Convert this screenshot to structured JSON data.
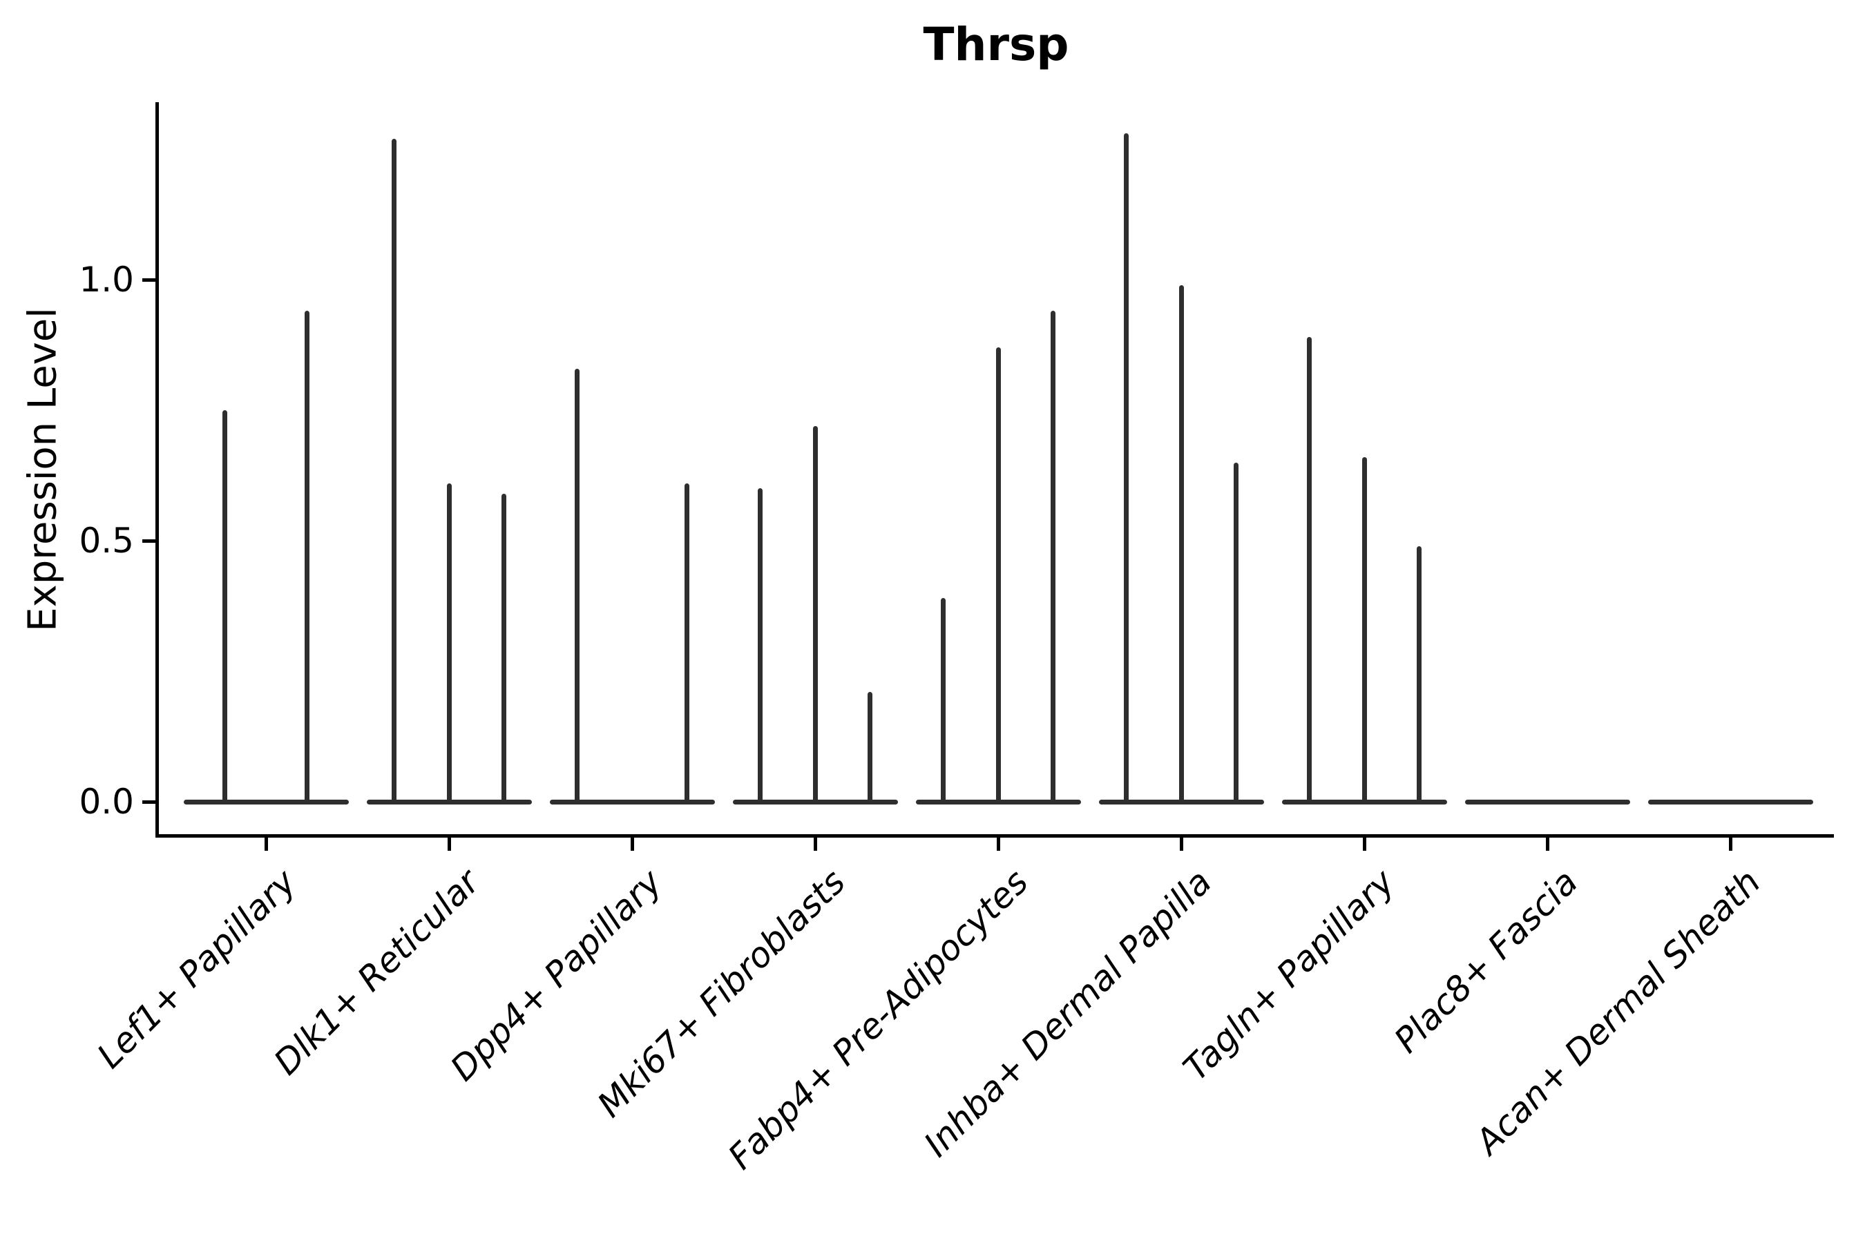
{
  "chart_data": {
    "type": "violin",
    "title": "Thrsp",
    "xlabel": "",
    "ylabel": "Expression Level",
    "ylim": [
      -0.065,
      1.34
    ],
    "yticks": [
      0.0,
      0.5,
      1.0
    ],
    "ytick_labels": [
      "0.0",
      "0.5",
      "1.0"
    ],
    "grid": false,
    "legend": "none",
    "categories": [
      "Lef1+ Papillary",
      "Dlk1+ Reticular",
      "Dpp4+ Papillary",
      "Mki67+ Fibroblasts",
      "Fabp4+ Pre-Adipocytes",
      "Inhba+ Dermal Papilla",
      "Tagln+ Papillary",
      "Plac8+ Fascia",
      "Acan+ Dermal Sheath"
    ],
    "violins": [
      {
        "category": "Lef1+ Papillary",
        "offsets": [
          -0.225,
          0.225
        ],
        "max_values": [
          0.75,
          0.94
        ]
      },
      {
        "category": "Dlk1+ Reticular",
        "offsets": [
          -0.3,
          0.0,
          0.3
        ],
        "max_values": [
          1.27,
          0.61,
          0.59
        ]
      },
      {
        "category": "Dpp4+ Papillary",
        "offsets": [
          -0.3,
          0.0,
          0.3
        ],
        "max_values": [
          0.83,
          0.0,
          0.61
        ]
      },
      {
        "category": "Mki67+ Fibroblasts",
        "offsets": [
          -0.3,
          0.0,
          0.3
        ],
        "max_values": [
          0.6,
          0.72,
          0.21
        ]
      },
      {
        "category": "Fabp4+ Pre-Adipocytes",
        "offsets": [
          -0.3,
          0.0,
          0.3
        ],
        "max_values": [
          0.39,
          0.87,
          0.94
        ]
      },
      {
        "category": "Inhba+ Dermal Papilla",
        "offsets": [
          -0.3,
          0.0,
          0.3
        ],
        "max_values": [
          1.28,
          0.99,
          0.65
        ]
      },
      {
        "category": "Tagln+ Papillary",
        "offsets": [
          -0.3,
          0.0,
          0.3
        ],
        "max_values": [
          0.89,
          0.66,
          0.49
        ]
      },
      {
        "category": "Plac8+ Fascia",
        "offsets": [
          -0.3,
          0.0,
          0.3
        ],
        "max_values": [
          0.0,
          0.0,
          0.0
        ]
      },
      {
        "category": "Acan+ Dermal Sheath",
        "offsets": [
          -0.3,
          0.0,
          0.3
        ],
        "max_values": [
          0.0,
          0.0,
          0.0
        ]
      }
    ],
    "violin_body_width_units": 0.9,
    "style": {
      "spike_color": "#2e2e2e",
      "baseline_color": "#2e2e2e",
      "axis_color": "#000000",
      "background": "#ffffff"
    }
  }
}
